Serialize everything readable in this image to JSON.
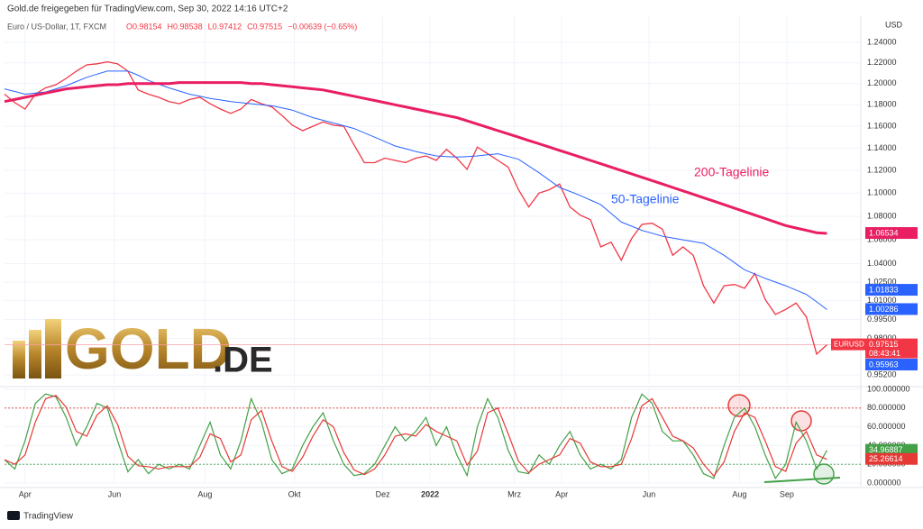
{
  "header": {
    "source": "Gold.de freigegeben für TradingView.com, Sep 30, 2022 14:16 UTC+2",
    "symbol": "Euro / US-Dollar, 1T, FXCM",
    "ohlc": [
      "O0.98154",
      "H0.98538",
      "L0.97412",
      "C0.97515",
      "−0.00639 (−0.65%)"
    ]
  },
  "logo": {
    "main": "GOLD",
    "suffix": ".DE"
  },
  "footer": "TradingView",
  "chart_data": [
    {
      "type": "line",
      "unit": "USD",
      "log": true,
      "grid": true,
      "x": [
        0,
        1,
        2,
        3,
        4,
        5,
        6,
        7,
        8,
        9,
        10,
        11,
        12,
        13,
        14,
        15,
        16,
        17,
        18,
        19,
        20,
        21,
        22,
        23,
        24,
        25,
        26,
        27,
        28,
        29,
        30,
        31,
        32,
        33,
        34,
        35,
        36,
        37,
        38,
        39,
        40,
        41,
        42,
        43,
        44,
        45,
        46,
        47,
        48,
        49,
        50,
        51,
        52,
        53,
        54,
        55,
        56,
        57,
        58,
        59,
        60,
        61,
        62,
        63,
        64,
        65,
        66,
        67,
        68,
        69,
        70,
        71,
        72,
        73,
        74,
        75,
        76,
        77,
        78,
        79,
        80
      ],
      "xlim": [
        0,
        83.3
      ],
      "xticks": [
        {
          "value": 2.0,
          "label": "Apr"
        },
        {
          "value": 10.7,
          "label": "Jun"
        },
        {
          "value": 19.5,
          "label": "Aug"
        },
        {
          "value": 28.2,
          "label": "Okt"
        },
        {
          "value": 36.8,
          "label": "Dez"
        },
        {
          "value": 41.4,
          "label": "2022"
        },
        {
          "value": 49.6,
          "label": "Mrz"
        },
        {
          "value": 54.2,
          "label": "Apr"
        },
        {
          "value": 62.7,
          "label": "Jun"
        },
        {
          "value": 71.5,
          "label": "Aug"
        },
        {
          "value": 76.1,
          "label": "Sep"
        }
      ],
      "ylim": [
        0.946,
        1.266
      ],
      "yticks": [
        {
          "value": 1.24,
          "label": "1.24000"
        },
        {
          "value": 1.22,
          "label": "1.22000"
        },
        {
          "value": 1.2,
          "label": "1.20000"
        },
        {
          "value": 1.18,
          "label": "1.18000"
        },
        {
          "value": 1.16,
          "label": "1.16000"
        },
        {
          "value": 1.14,
          "label": "1.14000"
        },
        {
          "value": 1.12,
          "label": "1.12000"
        },
        {
          "value": 1.1,
          "label": "1.10000"
        },
        {
          "value": 1.08,
          "label": "1.08000"
        },
        {
          "value": 1.06,
          "label": "1.06000"
        },
        {
          "value": 1.04,
          "label": "1.04000"
        },
        {
          "value": 1.025,
          "label": "1.02500"
        },
        {
          "value": 1.01,
          "label": "1.01000"
        },
        {
          "value": 0.995,
          "label": "0.99500"
        },
        {
          "value": 0.98,
          "label": "0.98000"
        },
        {
          "value": 0.952,
          "label": "0.95200"
        }
      ],
      "series": [
        {
          "name": "EURUSD",
          "color": "#f23645",
          "countdown": "08:43:41",
          "values": [
            1.19,
            1.182,
            1.176,
            1.19,
            1.196,
            1.199,
            1.205,
            1.212,
            1.218,
            1.219,
            1.221,
            1.219,
            1.212,
            1.194,
            1.19,
            1.187,
            1.183,
            1.181,
            1.185,
            1.187,
            1.181,
            1.176,
            1.172,
            1.176,
            1.185,
            1.181,
            1.178,
            1.17,
            1.161,
            1.156,
            1.16,
            1.164,
            1.161,
            1.16,
            1.143,
            1.127,
            1.127,
            1.131,
            1.129,
            1.127,
            1.131,
            1.133,
            1.129,
            1.139,
            1.131,
            1.121,
            1.141,
            1.135,
            1.129,
            1.123,
            1.103,
            1.088,
            1.1,
            1.103,
            1.108,
            1.088,
            1.081,
            1.077,
            1.054,
            1.058,
            1.043,
            1.061,
            1.073,
            1.074,
            1.069,
            1.047,
            1.054,
            1.047,
            1.022,
            1.008,
            1.022,
            1.023,
            1.02,
            1.032,
            1.011,
            0.999,
            1.003,
            1.008,
            0.997,
            0.968,
            0.97515
          ]
        },
        {
          "name": "50-Tagelinie",
          "color": "#2962ff",
          "values": [
            1.195,
            1.1925,
            1.19,
            1.191,
            1.192,
            1.195,
            1.198,
            1.202,
            1.206,
            1.209,
            1.212,
            1.212,
            1.212,
            1.208,
            1.203,
            1.1995,
            1.196,
            1.193,
            1.19,
            1.188,
            1.186,
            1.1845,
            1.183,
            1.182,
            1.181,
            1.18,
            1.179,
            1.177,
            1.175,
            1.1715,
            1.168,
            1.1655,
            1.163,
            1.1605,
            1.158,
            1.154,
            1.15,
            1.146,
            1.142,
            1.1395,
            1.137,
            1.135,
            1.133,
            1.1325,
            1.132,
            1.1325,
            1.133,
            1.134,
            1.135,
            1.1325,
            1.13,
            1.124,
            1.118,
            1.1115,
            1.105,
            1.1015,
            1.098,
            1.094,
            1.09,
            1.0825,
            1.075,
            1.0715,
            1.068,
            1.0655,
            1.063,
            1.0615,
            1.06,
            1.0585,
            1.057,
            1.052,
            1.047,
            1.041,
            1.035,
            1.0315,
            1.028,
            1.025,
            1.022,
            1.0185,
            1.015,
            1.009,
            1.00286
          ]
        },
        {
          "name": "200-Tagelinie",
          "color": "#e91e63",
          "values": [
            1.183,
            1.185,
            1.187,
            1.189,
            1.191,
            1.193,
            1.195,
            1.196,
            1.197,
            1.198,
            1.199,
            1.199,
            1.2,
            1.2,
            1.2,
            1.2,
            1.2,
            1.201,
            1.201,
            1.201,
            1.201,
            1.201,
            1.201,
            1.201,
            1.2,
            1.2,
            1.199,
            1.198,
            1.197,
            1.196,
            1.195,
            1.194,
            1.192,
            1.19,
            1.188,
            1.186,
            1.184,
            1.182,
            1.18,
            1.178,
            1.176,
            1.174,
            1.172,
            1.17,
            1.168,
            1.165,
            1.162,
            1.159,
            1.156,
            1.153,
            1.15,
            1.147,
            1.144,
            1.141,
            1.138,
            1.135,
            1.132,
            1.129,
            1.126,
            1.123,
            1.12,
            1.117,
            1.114,
            1.111,
            1.108,
            1.105,
            1.102,
            1.099,
            1.096,
            1.093,
            1.09,
            1.087,
            1.084,
            1.081,
            1.078,
            1.075,
            1.072,
            1.07,
            1.068,
            1.066,
            1.06534
          ]
        }
      ],
      "band_labels": [
        {
          "value": 1.01833,
          "color": "#2962ff"
        },
        {
          "value": 0.95963,
          "color": "#2962ff"
        }
      ]
    },
    {
      "type": "line",
      "grid": true,
      "ylim": [
        0,
        100
      ],
      "yticks": [
        {
          "value": 100,
          "label": "100.000000"
        },
        {
          "value": 80,
          "label": "80.000000"
        },
        {
          "value": 60,
          "label": "60.000000"
        },
        {
          "value": 40,
          "label": "40.000000"
        },
        {
          "value": 20,
          "label": "20.000000"
        },
        {
          "value": 0,
          "label": "0.000000"
        }
      ],
      "levels": [
        {
          "value": 80,
          "color": "#e53935"
        },
        {
          "value": 20,
          "color": "#43a047"
        }
      ],
      "series": [
        {
          "color": "#43a047",
          "values": [
            25,
            15,
            45,
            85,
            95,
            92,
            70,
            40,
            60,
            85,
            80,
            45,
            12,
            25,
            10,
            20,
            15,
            20,
            15,
            40,
            65,
            30,
            15,
            45,
            90,
            65,
            25,
            10,
            15,
            40,
            60,
            75,
            45,
            20,
            8,
            10,
            20,
            40,
            60,
            45,
            55,
            70,
            40,
            60,
            30,
            8,
            60,
            90,
            70,
            35,
            12,
            10,
            30,
            20,
            40,
            55,
            30,
            15,
            20,
            15,
            25,
            70,
            95,
            85,
            55,
            45,
            45,
            30,
            10,
            5,
            40,
            70,
            80,
            60,
            30,
            5,
            20,
            65,
            45,
            15,
            34.96887
          ]
        },
        {
          "color": "#e53935",
          "values": [
            25,
            20,
            30,
            65,
            90,
            93.5,
            81,
            55,
            50,
            72.5,
            82.5,
            62.5,
            28.5,
            18.5,
            17.5,
            15,
            17.5,
            17.5,
            17.5,
            27.5,
            52.5,
            47.5,
            22.5,
            30,
            67.5,
            77.5,
            45,
            17.5,
            12.5,
            27.5,
            50,
            67.5,
            60,
            32.5,
            14,
            9,
            15,
            30,
            50,
            52.5,
            50,
            62.5,
            55,
            50,
            45,
            19,
            34,
            75,
            80,
            52.5,
            23.5,
            11,
            20,
            25,
            30,
            47.5,
            42.5,
            22.5,
            17.5,
            17.5,
            20,
            47.5,
            82.5,
            90,
            70,
            50,
            45,
            37.5,
            20,
            7.5,
            22.5,
            55,
            75,
            70,
            45,
            17.5,
            12.5,
            42.5,
            55,
            30,
            25.26614
          ]
        }
      ]
    }
  ]
}
